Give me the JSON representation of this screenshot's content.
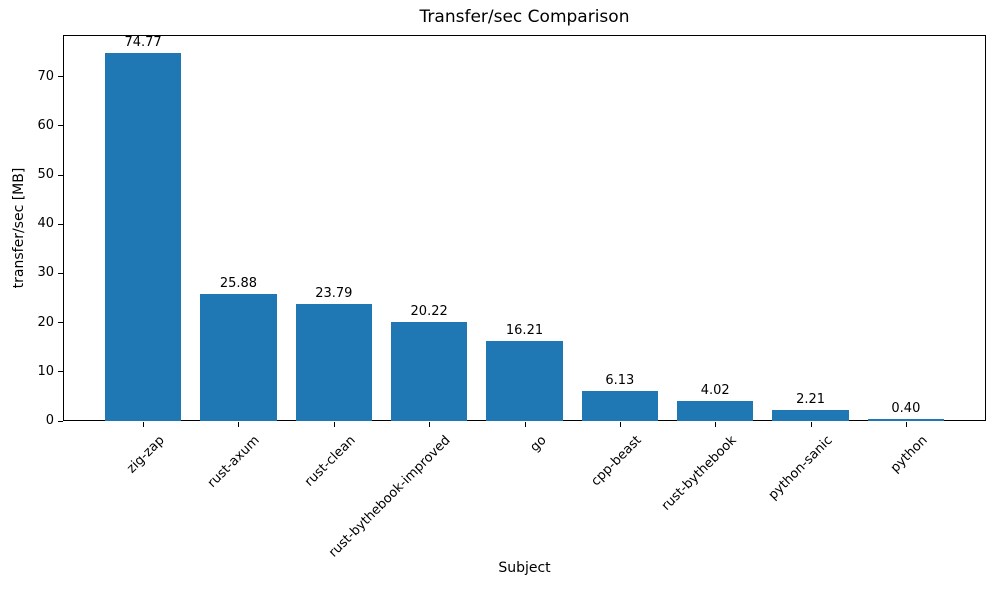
{
  "chart_data": {
    "type": "bar",
    "title": "Transfer/sec Comparison",
    "xlabel": "Subject",
    "ylabel": "transfer/sec [MB]",
    "categories": [
      "zig-zap",
      "rust-axum",
      "rust-clean",
      "rust-bythebook-improved",
      "go",
      "cpp-beast",
      "rust-bythebook",
      "python-sanic",
      "python"
    ],
    "values": [
      74.77,
      25.88,
      23.79,
      20.22,
      16.21,
      6.13,
      4.02,
      2.21,
      0.4
    ],
    "bar_value_labels": [
      "74.77",
      "25.88",
      "23.79",
      "20.22",
      "16.21",
      "6.13",
      "4.02",
      "2.21",
      "0.40"
    ],
    "yticks": [
      0,
      10,
      20,
      30,
      40,
      50,
      60,
      70
    ],
    "ylim": [
      0,
      78.5
    ],
    "xlim": [
      -0.84,
      8.84
    ],
    "bar_width_units": 0.8,
    "tick_label_rotation_deg": 45,
    "grid": false,
    "legend": null,
    "bar_color": "#1f77b4",
    "axis_color": "#000000",
    "text_color": "#000000",
    "background_color": "#ffffff"
  }
}
